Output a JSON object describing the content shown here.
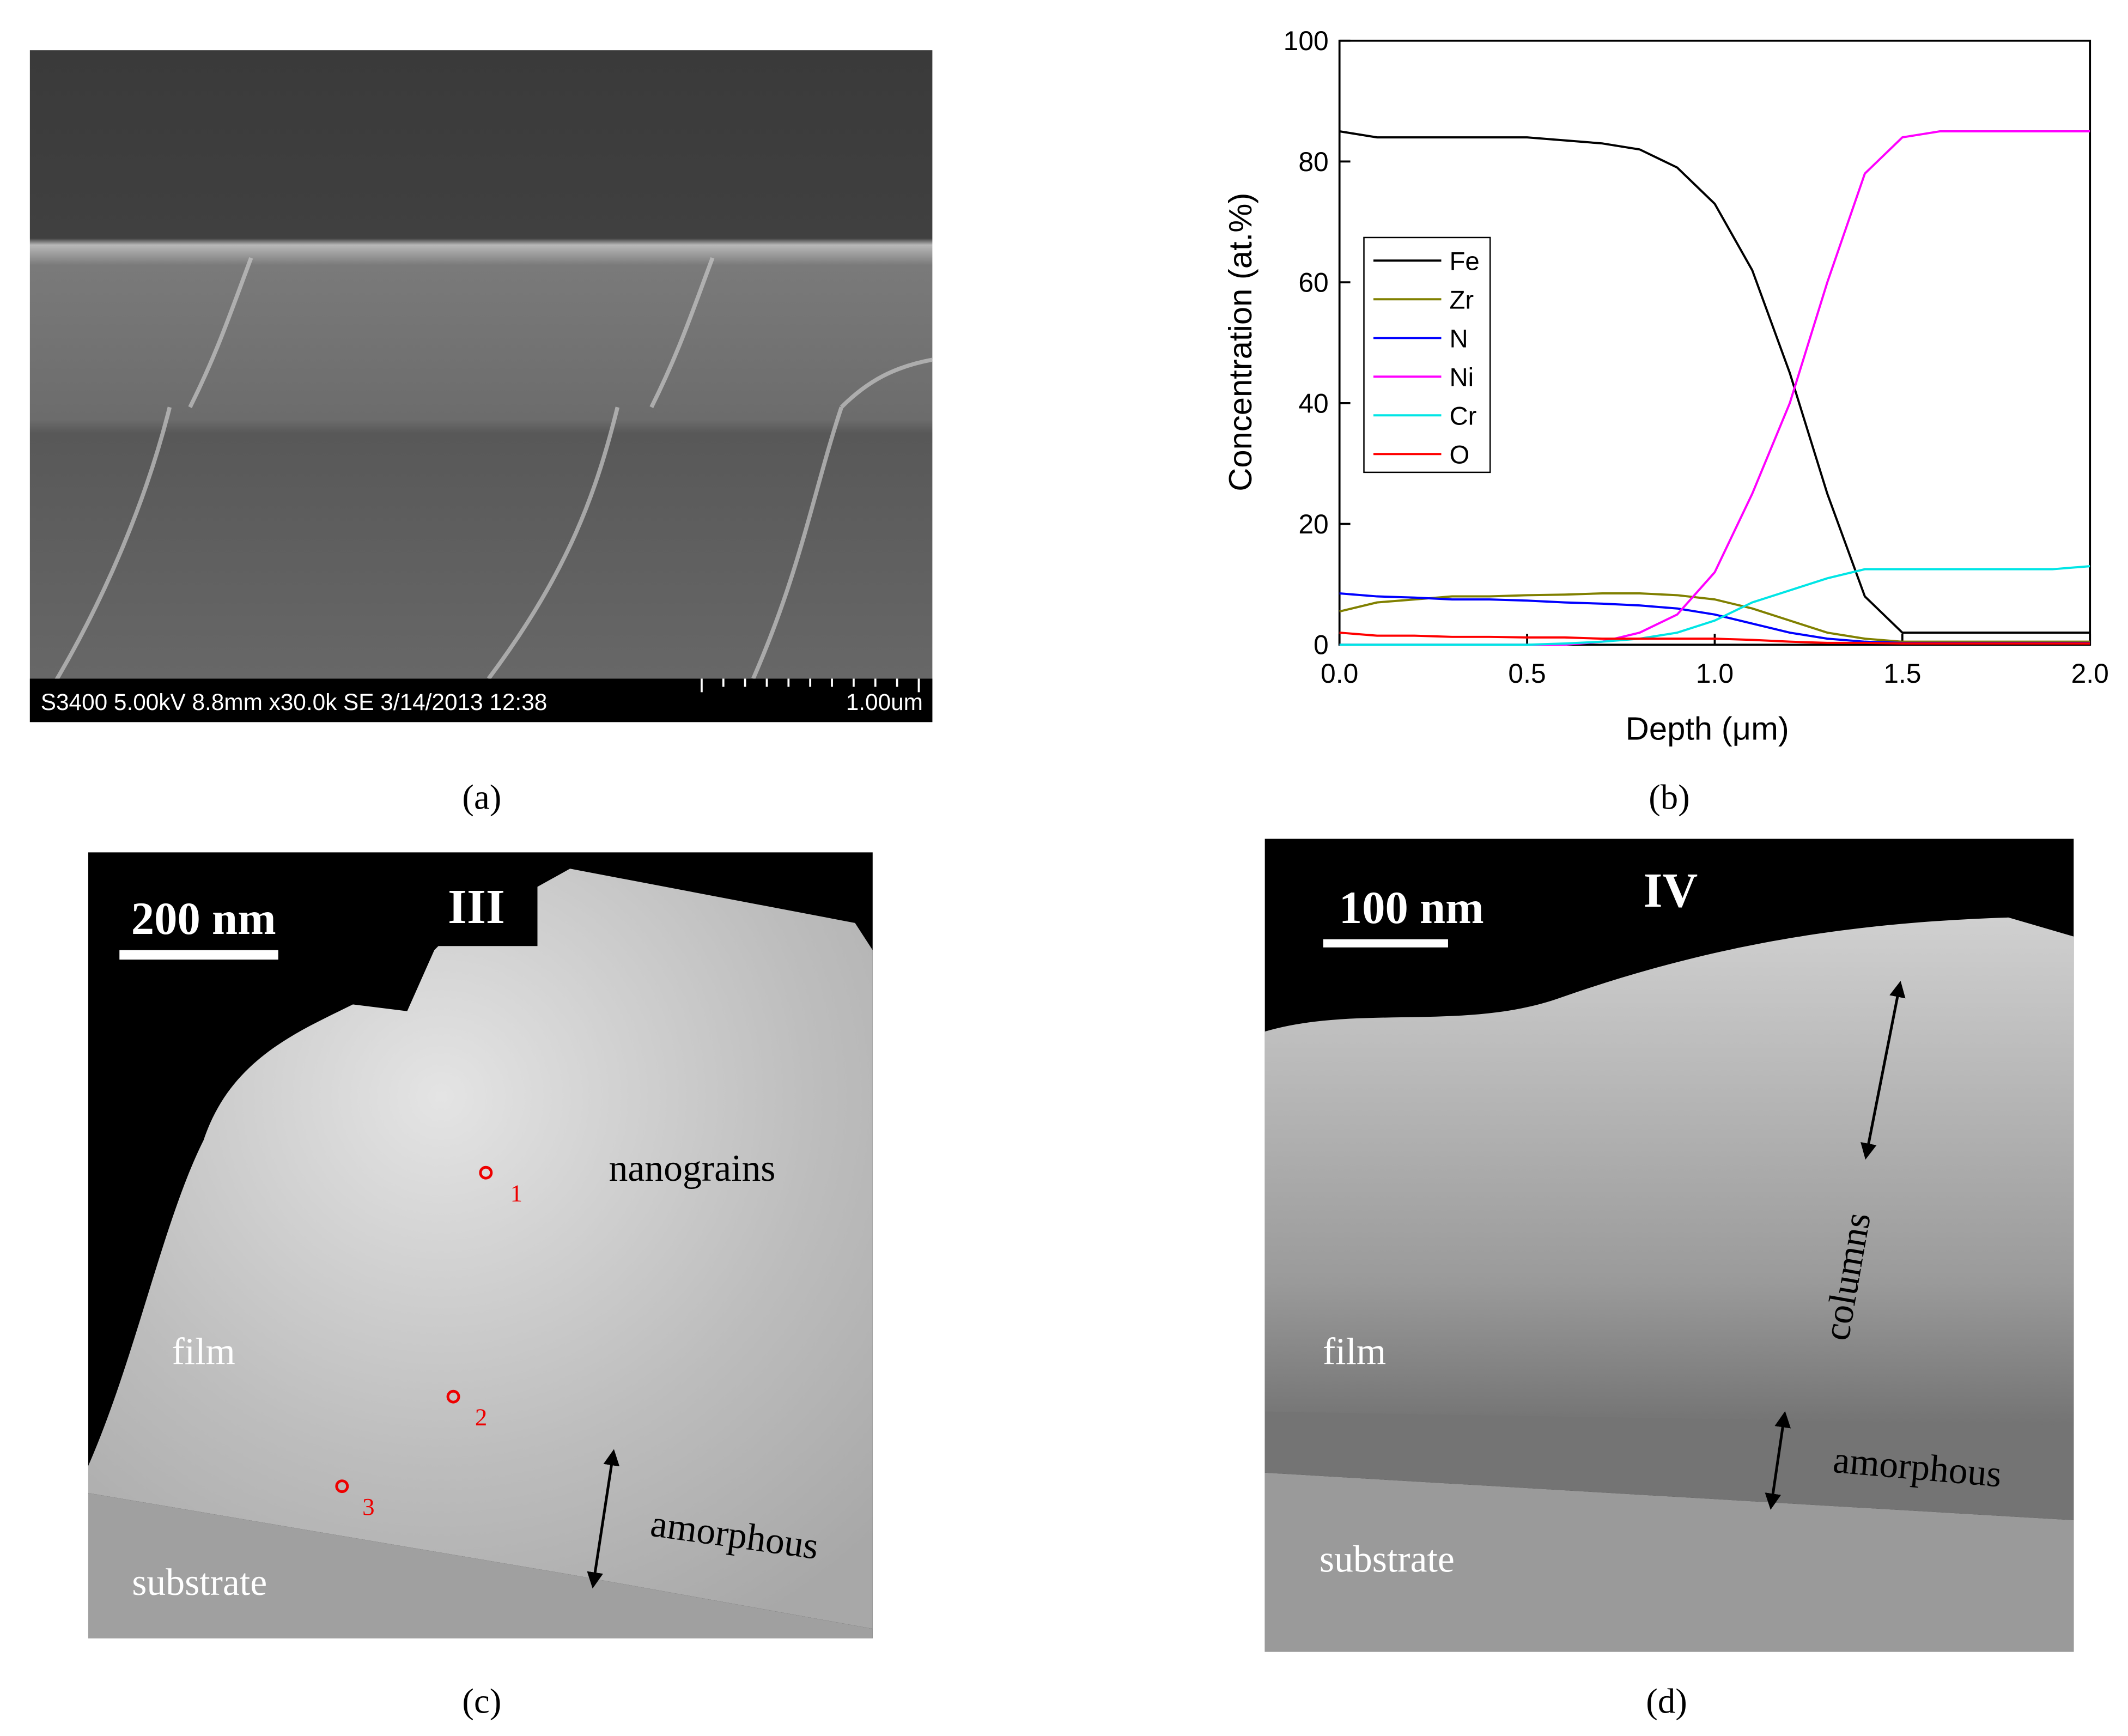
{
  "captions": [
    "(a)",
    "(b)",
    "(c)",
    "(d)"
  ],
  "panel_a": {
    "info": "S3400 5.00kV 8.8mm x30.0k SE  3/14/2013 12:38",
    "scale": "1.00um"
  },
  "panel_c": {
    "scale": "200 nm",
    "label": "III",
    "nanograins": "nanograins",
    "film": "film",
    "substrate": "substrate",
    "amorphous": "amorphous",
    "points": [
      "1",
      "2",
      "3"
    ]
  },
  "panel_d": {
    "scale": "100 nm",
    "label": "IV",
    "columns": "columns",
    "film": "film",
    "amorphous": "amorphous",
    "substrate": "substrate"
  },
  "chart_data": {
    "type": "line",
    "xlabel": "Depth (μm)",
    "ylabel": "Concentration (at.%)",
    "x": [
      0,
      0.1,
      0.2,
      0.3,
      0.4,
      0.5,
      0.6,
      0.7,
      0.8,
      0.9,
      1.0,
      1.1,
      1.2,
      1.3,
      1.4,
      1.5,
      1.6,
      1.7,
      1.8,
      1.9,
      2.0
    ],
    "xlim": [
      0,
      2
    ],
    "xticks": [
      {
        "value": 0,
        "label": "0.0"
      },
      0.5,
      {
        "value": 1,
        "label": "1.0"
      },
      1.5,
      {
        "value": 2,
        "label": "2.0"
      }
    ],
    "ylim": [
      0,
      100
    ],
    "yticks": [
      0,
      20,
      40,
      60,
      80,
      100
    ],
    "legend": "left",
    "series": [
      {
        "name": "Fe",
        "color": "#000000",
        "values": [
          85,
          84,
          84,
          84,
          84,
          84,
          83.5,
          83,
          82,
          79,
          73,
          62,
          45,
          25,
          8,
          2,
          2,
          2,
          2,
          2,
          2
        ]
      },
      {
        "name": "Zr",
        "color": "#808000",
        "values": [
          5.5,
          7,
          7.5,
          8,
          8,
          8.2,
          8.3,
          8.5,
          8.5,
          8.2,
          7.5,
          6,
          4,
          2,
          1,
          0.5,
          0.5,
          0.5,
          0.5,
          0.5,
          0.5
        ]
      },
      {
        "name": "N",
        "color": "#0000ff",
        "values": [
          8.5,
          8,
          7.8,
          7.5,
          7.5,
          7.3,
          7,
          6.8,
          6.5,
          6,
          5,
          3.5,
          2,
          1,
          0.5,
          0.3,
          0.3,
          0.3,
          0.3,
          0.3,
          0.3
        ]
      },
      {
        "name": "Ni",
        "color": "#ff00ff",
        "values": [
          0,
          0,
          0,
          0,
          0,
          0,
          0,
          0.5,
          2,
          5,
          12,
          25,
          40,
          60,
          78,
          84,
          85,
          85,
          85,
          85,
          85
        ]
      },
      {
        "name": "Cr",
        "color": "#00e5e5",
        "values": [
          0,
          0,
          0,
          0,
          0,
          0,
          0.2,
          0.5,
          1,
          2,
          4,
          7,
          9,
          11,
          12.5,
          12.5,
          12.5,
          12.5,
          12.5,
          12.5,
          13
        ]
      },
      {
        "name": "O",
        "color": "#ff0000",
        "values": [
          2,
          1.5,
          1.5,
          1.3,
          1.3,
          1.2,
          1.2,
          1,
          1,
          1,
          1,
          0.8,
          0.5,
          0.3,
          0.3,
          0.2,
          0.2,
          0.2,
          0.2,
          0.2,
          0.2
        ]
      }
    ]
  }
}
